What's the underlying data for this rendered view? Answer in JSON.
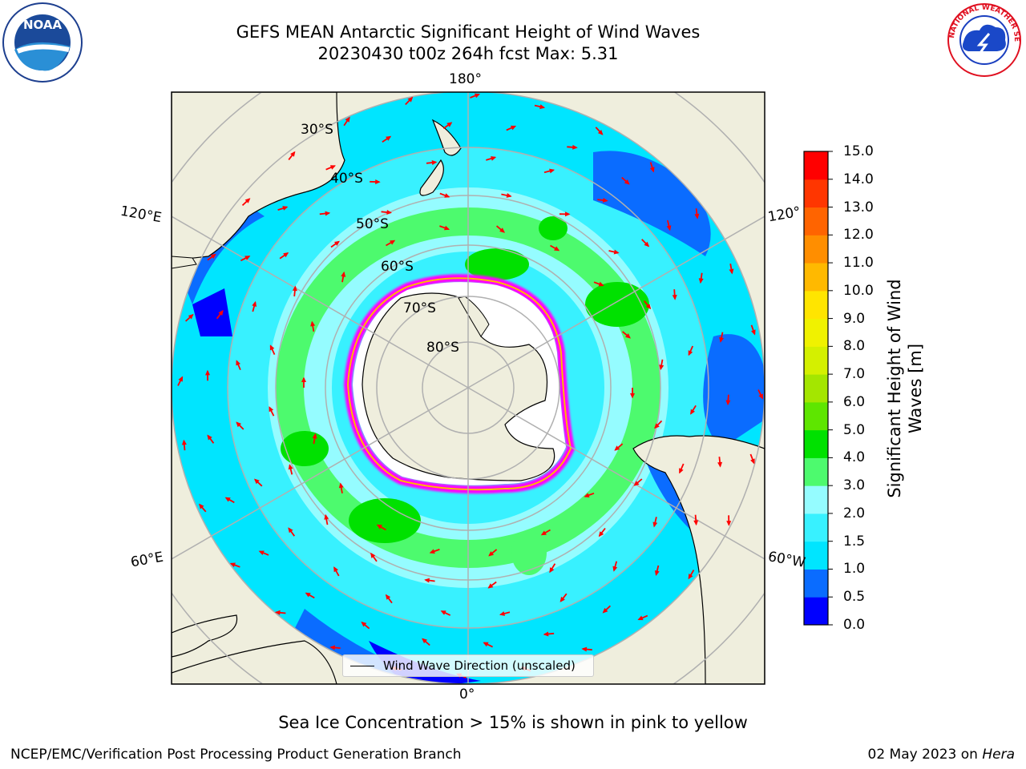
{
  "title": {
    "line1": "GEFS MEAN Antarctic Significant Height of Wind Waves",
    "line2": "20230430 t00z 264h fcst   Max: 5.31"
  },
  "logos": {
    "left": "NOAA",
    "right": "NATIONAL WEATHER SERVICE"
  },
  "map": {
    "projection": "south-polar-stereographic",
    "longitude_labels": [
      "180°",
      "120°E",
      "120°",
      "60°E",
      "60°W",
      "0°"
    ],
    "latitude_labels": [
      "30°S",
      "40°S",
      "50°S",
      "60°S",
      "70°S",
      "80°S"
    ],
    "legend_label": "Wind Wave Direction (unscaled)",
    "arrow_color": "#ff0000",
    "land_color": "#efeedd",
    "ice_colors": [
      "#ff00ff",
      "#ffff00"
    ]
  },
  "colorbar": {
    "title": "Significant Height of Wind Waves [m]",
    "ticks": [
      "0.0",
      "0.5",
      "1.0",
      "1.5",
      "2.0",
      "3.0",
      "4.0",
      "5.0",
      "6.0",
      "7.0",
      "8.0",
      "9.0",
      "10.0",
      "11.0",
      "12.0",
      "13.0",
      "14.0",
      "15.0"
    ],
    "colors": [
      "#0000ff",
      "#0a6cff",
      "#00e5ff",
      "#38f1ff",
      "#95fcff",
      "#4dfa6e",
      "#00e100",
      "#5ee600",
      "#a4e600",
      "#d4f000",
      "#f0f200",
      "#ffe500",
      "#ffb900",
      "#ff8e00",
      "#ff6400",
      "#ff3600",
      "#ff0000"
    ]
  },
  "note": "Sea Ice Concentration > 15% is shown in pink to yellow",
  "footer": {
    "left": "NCEP/EMC/Verification Post Processing Product Generation Branch",
    "right_date": "02 May 2023 on ",
    "right_host": "Hera"
  }
}
